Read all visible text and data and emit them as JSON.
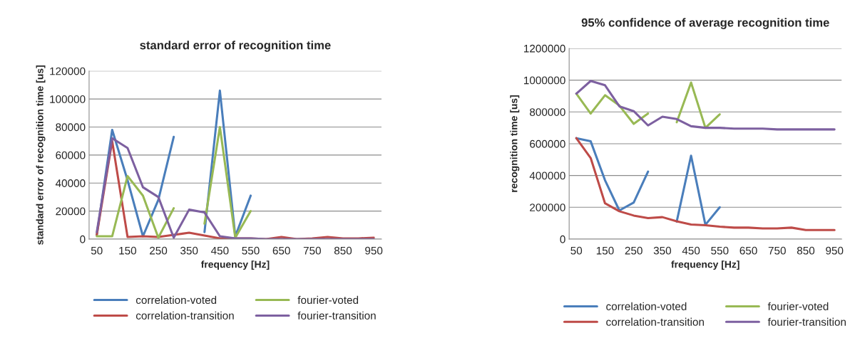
{
  "chart_data": [
    {
      "type": "line",
      "title": "standard error of recognition time",
      "xlabel": "frequency [Hz]",
      "ylabel": "standard error of recognition time [us]",
      "categories": [
        "50",
        null,
        "150",
        null,
        "250",
        null,
        "350",
        null,
        "450",
        null,
        "550",
        null,
        "650",
        null,
        "750",
        null,
        "850",
        null,
        "950"
      ],
      "ylim": [
        0,
        120000
      ],
      "yticks": [
        0,
        20000,
        40000,
        60000,
        80000,
        100000,
        120000
      ],
      "grid": "y",
      "legend": "bottom",
      "marker": "none",
      "line_style": "solid",
      "series": [
        {
          "name": "correlation-voted",
          "color": "#4a7ebb",
          "values": [
            3000,
            78000,
            42000,
            2000,
            28000,
            73000,
            null,
            5000,
            106000,
            2000,
            31000,
            null,
            null,
            null,
            null,
            null,
            null,
            null,
            null
          ]
        },
        {
          "name": "correlation-transition",
          "color": "#be4b48",
          "values": [
            3000,
            70000,
            1500,
            2000,
            1500,
            3000,
            4500,
            2500,
            500,
            500,
            500,
            0,
            1500,
            0,
            500,
            1500,
            500,
            500,
            1000
          ]
        },
        {
          "name": "fourier-voted",
          "color": "#98b954",
          "values": [
            2000,
            2000,
            45000,
            31000,
            1000,
            22000,
            null,
            11000,
            80000,
            1000,
            20000,
            null,
            null,
            null,
            null,
            null,
            null,
            null,
            null
          ]
        },
        {
          "name": "fourier-transition",
          "color": "#7d60a0",
          "values": [
            5000,
            72000,
            65000,
            37000,
            30000,
            1000,
            21000,
            19000,
            2000,
            500,
            500,
            0,
            0,
            0,
            0,
            0,
            0,
            0,
            0
          ]
        }
      ]
    },
    {
      "type": "line",
      "title": "95% confidence of average recognition time",
      "xlabel": "frequency [Hz]",
      "ylabel": "recognition time [us]",
      "categories": [
        "50",
        null,
        "150",
        null,
        "250",
        null,
        "350",
        null,
        "450",
        null,
        "550",
        null,
        "650",
        null,
        "750",
        null,
        "850",
        null,
        "950"
      ],
      "ylim": [
        0,
        1200000
      ],
      "yticks": [
        0,
        200000,
        400000,
        600000,
        800000,
        1000000,
        1200000
      ],
      "grid": "y",
      "legend": "bottom",
      "marker": "none",
      "line_style": "solid",
      "series": [
        {
          "name": "correlation-voted",
          "color": "#4a7ebb",
          "values": [
            635000,
            615000,
            370000,
            180000,
            230000,
            425000,
            null,
            110000,
            525000,
            90000,
            200000,
            null,
            null,
            null,
            null,
            null,
            null,
            null,
            null
          ]
        },
        {
          "name": "correlation-transition",
          "color": "#be4b48",
          "values": [
            635000,
            510000,
            225000,
            175000,
            148000,
            132000,
            138000,
            112000,
            92000,
            87000,
            78000,
            72000,
            72000,
            67000,
            67000,
            72000,
            57000,
            57000,
            57000
          ]
        },
        {
          "name": "fourier-voted",
          "color": "#98b954",
          "values": [
            915000,
            790000,
            905000,
            840000,
            725000,
            790000,
            null,
            735000,
            985000,
            700000,
            785000,
            null,
            null,
            null,
            null,
            null,
            null,
            null,
            null
          ]
        },
        {
          "name": "fourier-transition",
          "color": "#7d60a0",
          "values": [
            915000,
            995000,
            968000,
            835000,
            805000,
            715000,
            770000,
            755000,
            710000,
            700000,
            700000,
            695000,
            695000,
            695000,
            690000,
            690000,
            690000,
            690000,
            690000
          ]
        }
      ]
    }
  ]
}
